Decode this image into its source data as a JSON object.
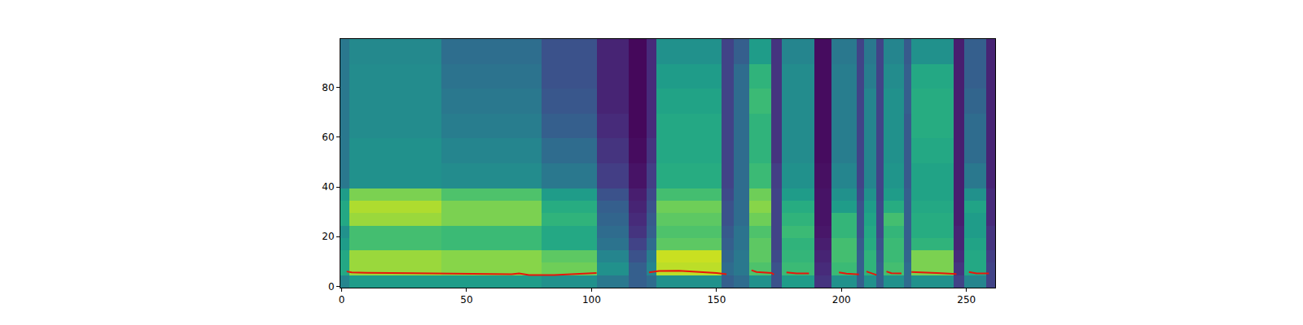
{
  "chart_data": {
    "type": "heatmap",
    "color": "Viridis",
    "color_range": [
      0,
      1
    ],
    "grid": false,
    "x_edges": [
      -0.5,
      3,
      40,
      80,
      102,
      115,
      122,
      126,
      152,
      157,
      163,
      172,
      176,
      189,
      196,
      206,
      209,
      214,
      217,
      225,
      228,
      245,
      249,
      258,
      261.5
    ],
    "y_edges": [
      -0.5,
      4.5,
      9.5,
      14.5,
      19.5,
      24.5,
      29.5,
      34.5,
      39.5,
      49.5,
      59.5,
      69.5,
      79.5,
      89.5,
      99.5
    ],
    "z": [
      [
        0.45,
        0.55,
        0.55,
        0.5,
        0.4,
        0.3,
        0.35,
        0.5,
        0.3,
        0.35,
        0.5,
        0.25,
        0.55,
        0.15,
        0.5,
        0.3,
        0.5,
        0.3,
        0.5,
        0.35,
        0.5,
        0.2,
        0.45,
        0.2
      ],
      [
        0.6,
        0.85,
        0.82,
        0.78,
        0.5,
        0.3,
        0.45,
        0.9,
        0.35,
        0.4,
        0.72,
        0.25,
        0.68,
        0.12,
        0.68,
        0.3,
        0.65,
        0.3,
        0.7,
        0.35,
        0.8,
        0.15,
        0.6,
        0.2
      ],
      [
        0.6,
        0.85,
        0.82,
        0.75,
        0.45,
        0.25,
        0.42,
        0.92,
        0.32,
        0.4,
        0.75,
        0.22,
        0.66,
        0.1,
        0.7,
        0.3,
        0.65,
        0.28,
        0.68,
        0.32,
        0.8,
        0.12,
        0.6,
        0.18
      ],
      [
        0.55,
        0.7,
        0.68,
        0.6,
        0.38,
        0.2,
        0.35,
        0.75,
        0.3,
        0.38,
        0.75,
        0.2,
        0.65,
        0.08,
        0.7,
        0.28,
        0.62,
        0.25,
        0.68,
        0.3,
        0.65,
        0.1,
        0.58,
        0.15
      ],
      [
        0.5,
        0.7,
        0.68,
        0.6,
        0.35,
        0.15,
        0.3,
        0.72,
        0.28,
        0.38,
        0.72,
        0.2,
        0.68,
        0.06,
        0.66,
        0.25,
        0.6,
        0.22,
        0.66,
        0.3,
        0.62,
        0.1,
        0.55,
        0.15
      ],
      [
        0.6,
        0.85,
        0.8,
        0.65,
        0.32,
        0.12,
        0.28,
        0.75,
        0.25,
        0.35,
        0.78,
        0.2,
        0.65,
        0.05,
        0.66,
        0.25,
        0.58,
        0.22,
        0.7,
        0.3,
        0.62,
        0.08,
        0.55,
        0.12
      ],
      [
        0.6,
        0.88,
        0.8,
        0.62,
        0.3,
        0.1,
        0.25,
        0.78,
        0.25,
        0.35,
        0.82,
        0.2,
        0.62,
        0.05,
        0.55,
        0.25,
        0.55,
        0.22,
        0.62,
        0.3,
        0.6,
        0.08,
        0.58,
        0.12
      ],
      [
        0.55,
        0.8,
        0.72,
        0.55,
        0.25,
        0.08,
        0.22,
        0.7,
        0.22,
        0.35,
        0.78,
        0.2,
        0.55,
        0.05,
        0.5,
        0.22,
        0.5,
        0.2,
        0.55,
        0.3,
        0.58,
        0.08,
        0.5,
        0.12
      ],
      [
        0.4,
        0.5,
        0.48,
        0.4,
        0.18,
        0.05,
        0.18,
        0.62,
        0.2,
        0.35,
        0.68,
        0.18,
        0.5,
        0.04,
        0.45,
        0.2,
        0.45,
        0.2,
        0.52,
        0.28,
        0.58,
        0.08,
        0.4,
        0.1
      ],
      [
        0.4,
        0.5,
        0.45,
        0.35,
        0.15,
        0.03,
        0.15,
        0.6,
        0.2,
        0.35,
        0.65,
        0.15,
        0.48,
        0.03,
        0.42,
        0.2,
        0.45,
        0.2,
        0.5,
        0.28,
        0.6,
        0.08,
        0.35,
        0.1
      ],
      [
        0.4,
        0.48,
        0.42,
        0.3,
        0.12,
        0.02,
        0.12,
        0.6,
        0.2,
        0.35,
        0.65,
        0.15,
        0.48,
        0.03,
        0.42,
        0.2,
        0.45,
        0.2,
        0.5,
        0.28,
        0.62,
        0.08,
        0.35,
        0.1
      ],
      [
        0.4,
        0.48,
        0.4,
        0.27,
        0.1,
        0.02,
        0.12,
        0.58,
        0.2,
        0.35,
        0.68,
        0.15,
        0.48,
        0.03,
        0.42,
        0.2,
        0.45,
        0.2,
        0.5,
        0.3,
        0.62,
        0.08,
        0.32,
        0.1
      ],
      [
        0.4,
        0.48,
        0.38,
        0.25,
        0.1,
        0.02,
        0.12,
        0.55,
        0.2,
        0.35,
        0.65,
        0.15,
        0.48,
        0.03,
        0.42,
        0.2,
        0.42,
        0.2,
        0.48,
        0.3,
        0.6,
        0.08,
        0.3,
        0.1
      ],
      [
        0.4,
        0.47,
        0.36,
        0.25,
        0.1,
        0.02,
        0.12,
        0.5,
        0.2,
        0.3,
        0.55,
        0.15,
        0.45,
        0.03,
        0.4,
        0.2,
        0.4,
        0.2,
        0.45,
        0.28,
        0.5,
        0.08,
        0.3,
        0.1
      ]
    ],
    "series": [
      {
        "type": "line",
        "color": "#e8150c",
        "x": [
          2,
          4,
          10,
          20,
          30,
          40,
          50,
          60,
          68,
          71,
          75,
          85,
          92,
          97,
          102,
          112,
          123,
          127,
          135,
          145,
          150,
          154,
          159,
          164,
          166,
          172,
          173,
          175,
          178,
          182,
          187,
          193,
          199,
          202,
          207,
          208.5,
          210,
          212,
          214,
          216,
          218,
          220,
          224,
          226,
          228,
          235,
          240,
          246,
          248,
          251,
          254,
          259
        ],
        "values": [
          6,
          5.6,
          5.5,
          5.4,
          5.3,
          5.2,
          5.1,
          4.8,
          4.9,
          5.2,
          4.6,
          4.6,
          5,
          5.3,
          5.4,
          null,
          5.6,
          6.2,
          6.3,
          5.8,
          5.4,
          4.9,
          null,
          6.5,
          5.8,
          5.4,
          4.8,
          null,
          5.6,
          5.2,
          5.2,
          null,
          5.6,
          5.1,
          4.8,
          null,
          6,
          5.2,
          4.6,
          null,
          6,
          5.3,
          5.2,
          null,
          5.8,
          5.6,
          5.3,
          5,
          null,
          5.8,
          5.2,
          5.2
        ]
      }
    ],
    "xlim": [
      -0.5,
      261.5
    ],
    "xticks": [
      0,
      50,
      100,
      150,
      200,
      250
    ],
    "ylim": [
      -0.5,
      99.5
    ],
    "yticks": [
      0,
      20,
      40,
      60,
      80
    ]
  }
}
